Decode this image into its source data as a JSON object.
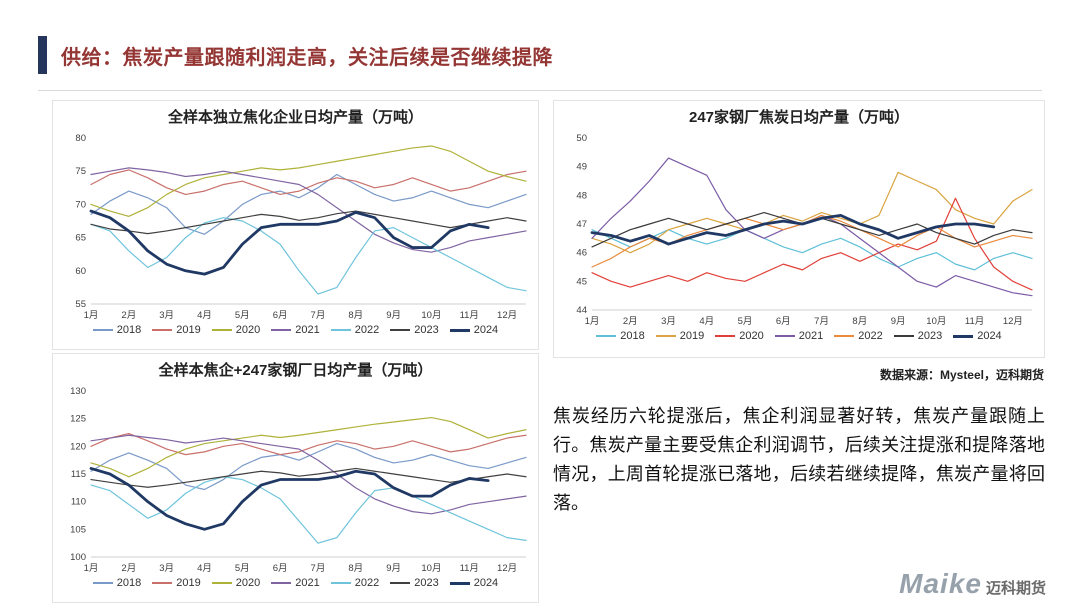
{
  "header": {
    "title": "供给：焦炭产量跟随利润走高，关注后续是否继续提降"
  },
  "source_note": "数据来源：Mysteel，迈科期货",
  "commentary": "焦炭经历六轮提涨后，焦企利润显著好转，焦炭产量跟随上行。焦炭产量主要受焦企利润调节，后续关注提涨和提降落地情况，上周首轮提涨已落地，后续若继续提降，焦炭产量将回落。",
  "logo": {
    "brand": "Maike",
    "name": "迈科期货"
  },
  "chart_data": [
    {
      "type": "line",
      "title": "全样本独立焦化企业日均产量（万吨）",
      "x_tick_labels": [
        "1月",
        "2月",
        "3月",
        "4月",
        "5月",
        "6月",
        "7月",
        "8月",
        "9月",
        "10月",
        "11月",
        "12月"
      ],
      "ylim": [
        55,
        80
      ],
      "yticks": [
        55,
        60,
        65,
        70,
        75,
        80
      ],
      "points_per_year": 24,
      "grid": false,
      "legend_position": "bottom",
      "series": [
        {
          "name": "2018",
          "color": "#7999C8",
          "width": 1.2,
          "values": [
            68.5,
            70.5,
            72.0,
            71.0,
            69.5,
            66.5,
            65.5,
            67.5,
            70.0,
            71.5,
            72.0,
            71.0,
            72.5,
            74.5,
            73.0,
            71.5,
            70.5,
            71.0,
            72.0,
            71.0,
            70.0,
            69.5,
            70.5,
            71.5
          ]
        },
        {
          "name": "2019",
          "color": "#C9706B",
          "width": 1.2,
          "values": [
            73.0,
            74.5,
            75.2,
            74.0,
            72.5,
            71.5,
            72.0,
            73.0,
            73.5,
            72.5,
            71.5,
            72.0,
            73.2,
            74.0,
            73.5,
            72.5,
            73.0,
            74.0,
            73.0,
            72.0,
            72.5,
            73.5,
            74.5,
            75.0
          ]
        },
        {
          "name": "2020",
          "color": "#AFB239",
          "width": 1.2,
          "values": [
            70.0,
            69.0,
            68.2,
            69.5,
            71.5,
            73.0,
            74.0,
            74.5,
            75.0,
            75.5,
            75.2,
            75.5,
            76.0,
            76.5,
            77.0,
            77.5,
            78.0,
            78.5,
            78.8,
            78.0,
            76.5,
            75.0,
            74.2,
            73.5
          ]
        },
        {
          "name": "2021",
          "color": "#8064A2",
          "width": 1.2,
          "values": [
            74.5,
            75.0,
            75.5,
            75.2,
            74.8,
            74.2,
            74.5,
            75.0,
            74.5,
            74.0,
            73.5,
            73.0,
            71.5,
            69.5,
            67.5,
            65.5,
            64.2,
            63.2,
            62.8,
            63.5,
            64.5,
            65.0,
            65.5,
            66.0
          ]
        },
        {
          "name": "2022",
          "color": "#6FC4DB",
          "width": 1.2,
          "values": [
            67.0,
            66.0,
            63.0,
            60.5,
            62.0,
            65.0,
            67.2,
            68.0,
            67.5,
            66.0,
            64.0,
            60.0,
            56.5,
            57.5,
            62.0,
            66.0,
            66.5,
            65.0,
            63.5,
            62.0,
            60.5,
            59.0,
            57.5,
            57.0
          ]
        },
        {
          "name": "2023",
          "color": "#404040",
          "width": 1.2,
          "values": [
            67.0,
            66.3,
            66.0,
            65.6,
            66.0,
            66.5,
            67.0,
            67.5,
            68.0,
            68.5,
            68.2,
            67.6,
            68.0,
            68.6,
            69.0,
            68.5,
            68.0,
            67.5,
            67.0,
            66.5,
            67.0,
            67.5,
            68.0,
            67.5
          ]
        },
        {
          "name": "2024",
          "color": "#1F3864",
          "width": 2.8,
          "values": [
            69.0,
            68.0,
            66.0,
            63.0,
            61.0,
            60.0,
            59.5,
            60.5,
            64.0,
            66.5,
            67.0,
            67.0,
            67.0,
            67.5,
            68.8,
            68.0,
            65.0,
            63.5,
            63.5,
            66.0,
            67.0,
            66.5
          ]
        }
      ]
    },
    {
      "type": "line",
      "title": "全样本焦企+247家钢厂日均产量（万吨）",
      "x_tick_labels": [
        "1月",
        "2月",
        "3月",
        "4月",
        "5月",
        "6月",
        "7月",
        "8月",
        "9月",
        "10月",
        "11月",
        "12月"
      ],
      "ylim": [
        100,
        130
      ],
      "yticks": [
        100,
        105,
        110,
        115,
        120,
        125,
        130
      ],
      "points_per_year": 24,
      "grid": false,
      "legend_position": "bottom",
      "series": [
        {
          "name": "2018",
          "color": "#7999C8",
          "width": 1.2,
          "values": [
            115.5,
            117.5,
            118.8,
            117.5,
            116.0,
            113.0,
            112.2,
            114.0,
            116.5,
            118.0,
            118.5,
            117.5,
            119.0,
            120.5,
            119.5,
            118.0,
            117.0,
            117.5,
            118.5,
            117.5,
            116.5,
            116.0,
            117.0,
            118.0
          ]
        },
        {
          "name": "2019",
          "color": "#C9706B",
          "width": 1.2,
          "values": [
            120.0,
            121.5,
            122.3,
            121.0,
            119.5,
            118.5,
            119.0,
            120.0,
            120.5,
            119.5,
            118.5,
            119.0,
            120.2,
            121.0,
            120.5,
            119.5,
            120.0,
            121.0,
            120.0,
            119.0,
            119.5,
            120.5,
            121.5,
            122.0
          ]
        },
        {
          "name": "2020",
          "color": "#AFB239",
          "width": 1.2,
          "values": [
            117.0,
            116.0,
            114.5,
            116.0,
            118.0,
            119.5,
            120.5,
            121.0,
            121.5,
            122.0,
            121.6,
            122.0,
            122.5,
            123.0,
            123.5,
            124.0,
            124.4,
            124.8,
            125.2,
            124.5,
            123.0,
            121.5,
            122.3,
            123.0
          ]
        },
        {
          "name": "2021",
          "color": "#8064A2",
          "width": 1.2,
          "values": [
            121.0,
            121.5,
            122.0,
            121.6,
            121.2,
            120.6,
            121.0,
            121.5,
            121.0,
            120.5,
            120.0,
            119.5,
            117.5,
            115.0,
            112.5,
            110.5,
            109.2,
            108.2,
            107.8,
            108.5,
            109.5,
            110.0,
            110.5,
            111.0
          ]
        },
        {
          "name": "2022",
          "color": "#6FC4DB",
          "width": 1.2,
          "values": [
            113.0,
            112.0,
            109.5,
            107.0,
            108.5,
            111.5,
            113.5,
            114.5,
            114.0,
            112.5,
            110.5,
            106.5,
            102.5,
            103.5,
            108.0,
            112.0,
            112.5,
            111.0,
            109.5,
            108.0,
            106.5,
            105.0,
            103.5,
            103.0
          ]
        },
        {
          "name": "2023",
          "color": "#404040",
          "width": 1.2,
          "values": [
            114.0,
            113.5,
            113.0,
            112.6,
            113.0,
            113.5,
            114.0,
            114.5,
            115.0,
            115.5,
            115.2,
            114.6,
            115.0,
            115.5,
            116.0,
            115.5,
            115.0,
            114.5,
            114.0,
            113.5,
            114.0,
            114.5,
            115.0,
            114.5
          ]
        },
        {
          "name": "2024",
          "color": "#1F3864",
          "width": 2.8,
          "values": [
            116.0,
            115.0,
            113.0,
            110.0,
            107.5,
            106.0,
            105.0,
            106.0,
            110.0,
            113.0,
            114.0,
            114.0,
            114.0,
            114.5,
            115.5,
            115.0,
            112.5,
            111.0,
            111.0,
            113.0,
            114.2,
            113.8
          ]
        }
      ]
    },
    {
      "type": "line",
      "title": "247家钢厂焦炭日均产量（万吨）",
      "x_tick_labels": [
        "1月",
        "2月",
        "3月",
        "4月",
        "5月",
        "6月",
        "7月",
        "8月",
        "9月",
        "10月",
        "11月",
        "12月"
      ],
      "ylim": [
        44,
        50
      ],
      "yticks": [
        44,
        45,
        46,
        47,
        48,
        49,
        50
      ],
      "points_per_year": 24,
      "grid": false,
      "legend_position": "bottom",
      "series": [
        {
          "name": "2018",
          "color": "#5FC0D8",
          "width": 1.2,
          "values": [
            46.8,
            46.5,
            46.2,
            46.5,
            46.8,
            46.5,
            46.3,
            46.5,
            46.8,
            46.5,
            46.2,
            46.0,
            46.3,
            46.5,
            46.2,
            45.8,
            45.5,
            45.8,
            46.0,
            45.6,
            45.4,
            45.8,
            46.0,
            45.8
          ]
        },
        {
          "name": "2019",
          "color": "#D9A441",
          "width": 1.2,
          "values": [
            46.5,
            46.3,
            46.0,
            46.3,
            46.8,
            47.0,
            47.2,
            47.0,
            46.8,
            47.0,
            47.3,
            47.1,
            47.4,
            47.2,
            47.0,
            47.3,
            48.8,
            48.5,
            48.2,
            47.5,
            47.2,
            47.0,
            47.8,
            48.2
          ]
        },
        {
          "name": "2020",
          "color": "#E04038",
          "width": 1.2,
          "values": [
            45.3,
            45.0,
            44.8,
            45.0,
            45.2,
            45.0,
            45.3,
            45.1,
            45.0,
            45.3,
            45.6,
            45.4,
            45.8,
            46.0,
            45.7,
            46.0,
            46.3,
            46.1,
            46.4,
            47.9,
            46.5,
            45.5,
            45.0,
            44.7
          ]
        },
        {
          "name": "2021",
          "color": "#7B5AA6",
          "width": 1.2,
          "values": [
            46.5,
            47.2,
            47.8,
            48.5,
            49.3,
            49.0,
            48.7,
            47.5,
            46.8,
            46.5,
            46.8,
            47.0,
            47.3,
            47.0,
            46.5,
            46.0,
            45.5,
            45.0,
            44.8,
            45.2,
            45.0,
            44.8,
            44.6,
            44.5
          ]
        },
        {
          "name": "2022",
          "color": "#E98A3C",
          "width": 1.2,
          "values": [
            45.5,
            45.8,
            46.2,
            46.5,
            46.3,
            46.6,
            46.8,
            47.0,
            47.2,
            47.0,
            46.8,
            47.0,
            47.3,
            47.1,
            46.8,
            46.5,
            46.2,
            46.6,
            46.9,
            46.5,
            46.2,
            46.4,
            46.6,
            46.5
          ]
        },
        {
          "name": "2023",
          "color": "#3A3A3A",
          "width": 1.2,
          "values": [
            46.2,
            46.5,
            46.8,
            47.0,
            47.2,
            47.0,
            46.8,
            47.0,
            47.2,
            47.4,
            47.2,
            47.0,
            47.2,
            47.0,
            46.8,
            46.6,
            46.8,
            47.0,
            46.7,
            46.5,
            46.3,
            46.6,
            46.8,
            46.7
          ]
        },
        {
          "name": "2024",
          "color": "#1F3864",
          "width": 2.8,
          "values": [
            46.7,
            46.6,
            46.4,
            46.6,
            46.3,
            46.5,
            46.7,
            46.6,
            46.8,
            47.0,
            47.1,
            47.0,
            47.2,
            47.3,
            47.0,
            46.8,
            46.5,
            46.7,
            46.9,
            47.0,
            47.0,
            46.9
          ]
        }
      ]
    }
  ]
}
